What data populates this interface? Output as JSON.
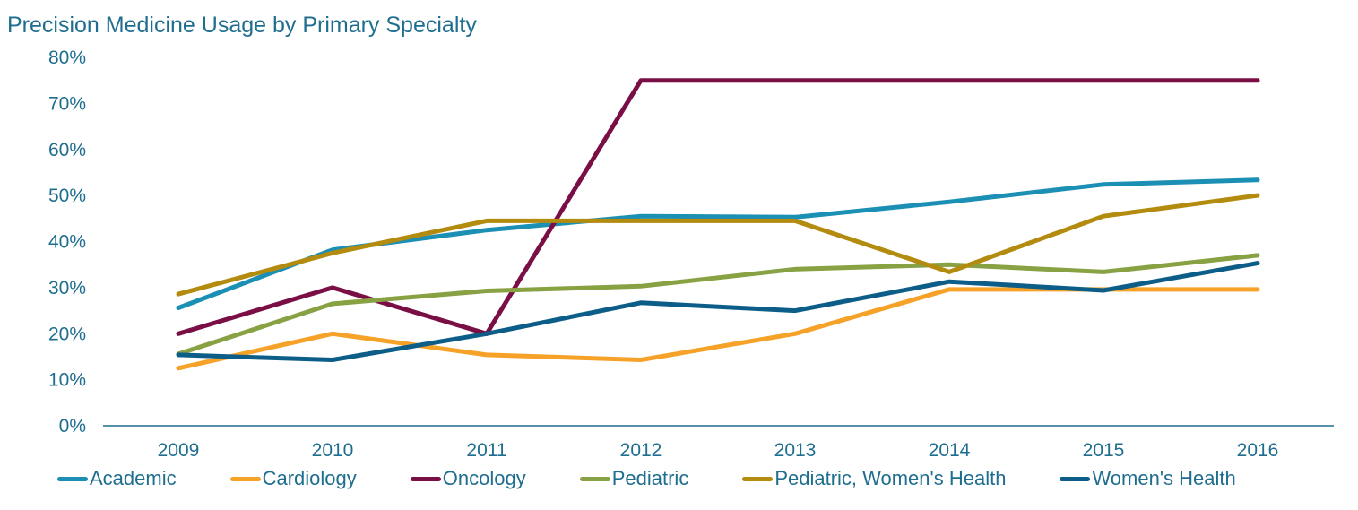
{
  "chart_data": {
    "type": "line",
    "title": "Precision Medicine Usage by Primary Specialty",
    "xlabel": "",
    "ylabel": "",
    "categories": [
      "2009",
      "2010",
      "2011",
      "2012",
      "2013",
      "2014",
      "2015",
      "2016"
    ],
    "y_ticks": [
      "0%",
      "10%",
      "20%",
      "30%",
      "40%",
      "50%",
      "60%",
      "70%",
      "80%"
    ],
    "ylim": [
      0,
      80
    ],
    "grid": false,
    "legend_position": "bottom",
    "series": [
      {
        "name": "Academic",
        "color": "#1b8fb4",
        "values": [
          25.6,
          38.2,
          42.5,
          45.5,
          45.3,
          48.6,
          52.4,
          53.4
        ]
      },
      {
        "name": "Cardiology",
        "color": "#f6a229",
        "values": [
          12.5,
          20.0,
          15.4,
          14.3,
          20.0,
          29.6,
          29.6,
          29.6
        ]
      },
      {
        "name": "Oncology",
        "color": "#7a0f45",
        "values": [
          20.0,
          30.0,
          20.0,
          75.0,
          75.0,
          75.0,
          75.0,
          75.0
        ]
      },
      {
        "name": "Pediatric",
        "color": "#87a143",
        "values": [
          15.6,
          26.5,
          29.3,
          30.3,
          34.0,
          35.0,
          33.4,
          37.0
        ]
      },
      {
        "name": "Pediatric, Women's Health",
        "color": "#b38b0e",
        "values": [
          28.6,
          37.5,
          44.5,
          44.5,
          44.5,
          33.4,
          45.5,
          50.0
        ]
      },
      {
        "name": "Women's Health",
        "color": "#0c5d87",
        "values": [
          15.4,
          14.3,
          20.0,
          26.7,
          25.0,
          31.3,
          29.4,
          35.3
        ]
      }
    ]
  }
}
